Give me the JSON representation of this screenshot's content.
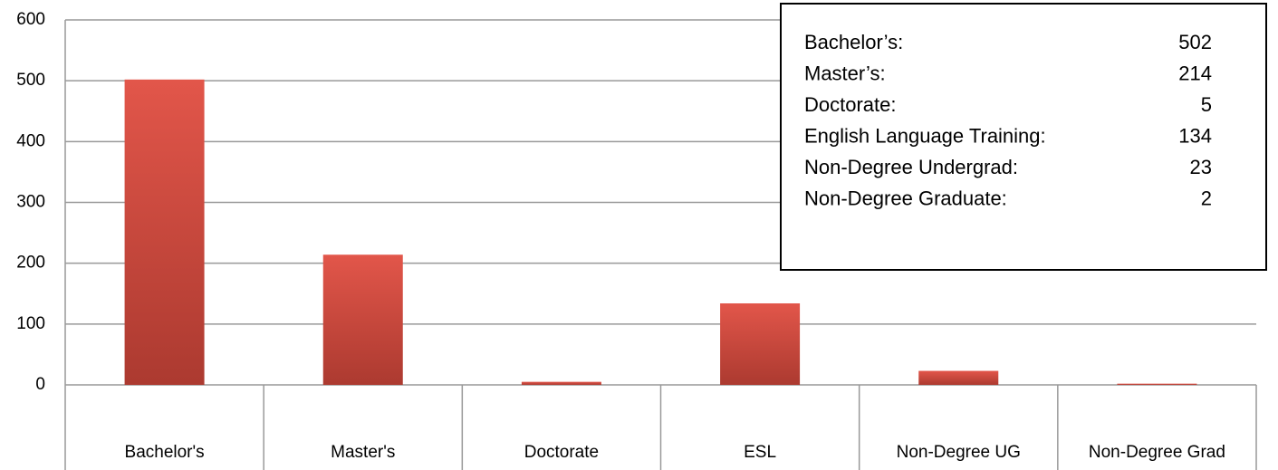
{
  "chart_data": {
    "type": "bar",
    "categories": [
      "Bachelor's",
      "Master's",
      "Doctorate",
      "ESL",
      "Non-Degree UG",
      "Non-Degree Grad"
    ],
    "values": [
      502,
      214,
      5,
      134,
      23,
      2
    ],
    "color": "#d94b3f",
    "ylim": [
      0,
      600
    ],
    "yticks": [
      0,
      100,
      200,
      300,
      400,
      500,
      600
    ],
    "grid": true,
    "annotation_labels": [
      "Bachelor’s:",
      "Master’s:",
      "Doctorate:",
      "English Language Training:",
      "Non-Degree Undergrad:",
      "Non-Degree Graduate:"
    ]
  }
}
